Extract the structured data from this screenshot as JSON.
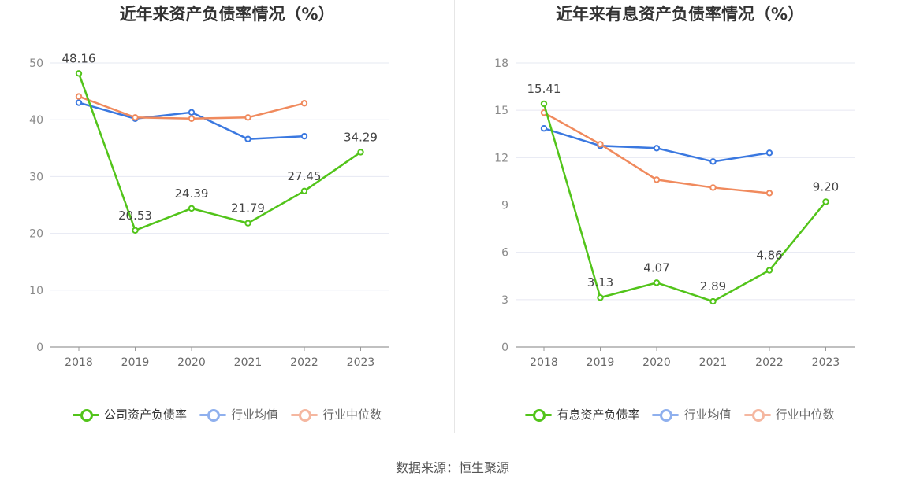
{
  "source_label": "数据来源：恒生聚源",
  "chart_data": [
    {
      "type": "line",
      "title": "近年来资产负债率情况（%）",
      "categories": [
        "2018",
        "2019",
        "2020",
        "2021",
        "2022",
        "2023"
      ],
      "ylim": [
        0,
        50
      ],
      "yticks": [
        0,
        10,
        20,
        30,
        40,
        50
      ],
      "grid": true,
      "legend_position": "bottom",
      "series": [
        {
          "name": "公司资产负债率",
          "color": "#52c41a",
          "values": [
            48.16,
            20.53,
            24.39,
            21.79,
            27.45,
            34.29
          ],
          "labels": [
            "48.16",
            "20.53",
            "24.39",
            "21.79",
            "27.45",
            "34.29"
          ]
        },
        {
          "name": "行业均值",
          "color": "#3a78e0",
          "legend_color": "#8fb0ee",
          "values": [
            43.0,
            40.2,
            41.3,
            36.6,
            37.1,
            null
          ]
        },
        {
          "name": "行业中位数",
          "color": "#f08a5d",
          "legend_color": "#f5b7a0",
          "values": [
            44.1,
            40.4,
            40.2,
            40.4,
            42.9,
            null
          ]
        }
      ]
    },
    {
      "type": "line",
      "title": "近年来有息资产负债率情况（%）",
      "categories": [
        "2018",
        "2019",
        "2020",
        "2021",
        "2022",
        "2023"
      ],
      "ylim": [
        0,
        18
      ],
      "yticks": [
        0,
        3,
        6,
        9,
        12,
        15,
        18
      ],
      "grid": true,
      "legend_position": "bottom",
      "series": [
        {
          "name": "有息资产负债率",
          "color": "#52c41a",
          "values": [
            15.41,
            3.13,
            4.07,
            2.89,
            4.86,
            9.2
          ],
          "labels": [
            "15.41",
            "3.13",
            "4.07",
            "2.89",
            "4.86",
            "9.20"
          ]
        },
        {
          "name": "行业均值",
          "color": "#3a78e0",
          "legend_color": "#8fb0ee",
          "values": [
            13.85,
            12.75,
            12.6,
            11.75,
            12.3,
            null
          ]
        },
        {
          "name": "行业中位数",
          "color": "#f08a5d",
          "legend_color": "#f5b7a0",
          "values": [
            14.85,
            12.85,
            10.6,
            10.1,
            9.75,
            null
          ]
        }
      ]
    }
  ]
}
